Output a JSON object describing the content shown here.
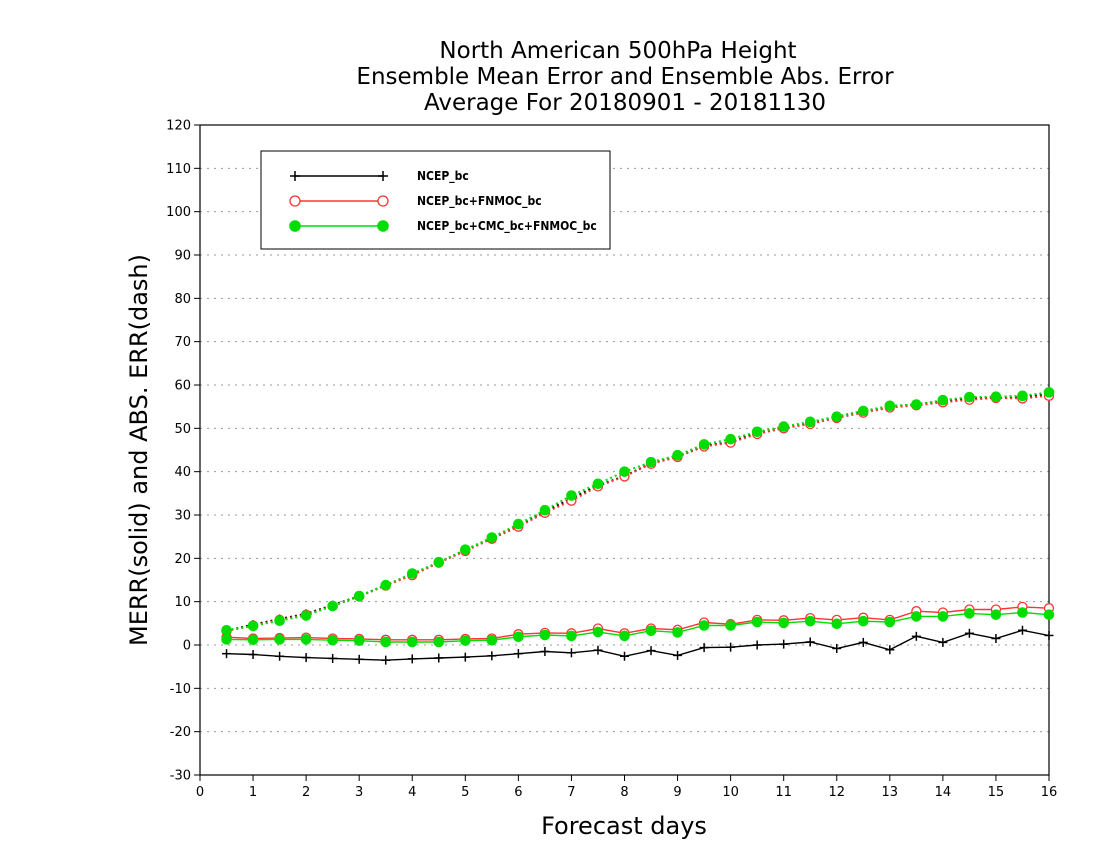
{
  "chart_data": {
    "type": "line",
    "title_lines": [
      "North American 500hPa Height",
      "Ensemble Mean Error and Ensemble Abs. Error",
      "Average For 20180901 - 20181130"
    ],
    "xlabel": "Forecast days",
    "ylabel": "MERR(solid) and ABS. ERR(dash)",
    "xlim": [
      0,
      16
    ],
    "ylim": [
      -30,
      120
    ],
    "xticks": [
      0,
      1,
      2,
      3,
      4,
      5,
      6,
      7,
      8,
      9,
      10,
      11,
      12,
      13,
      14,
      15,
      16
    ],
    "yticks": [
      -30,
      -20,
      -10,
      0,
      10,
      20,
      30,
      40,
      50,
      60,
      70,
      80,
      90,
      100,
      110,
      120
    ],
    "grid": true,
    "legend_position": "top-left",
    "x": [
      0.5,
      1,
      1.5,
      2,
      2.5,
      3,
      3.5,
      4,
      4.5,
      5,
      5.5,
      6,
      6.5,
      7,
      7.5,
      8,
      8.5,
      9,
      9.5,
      10,
      10.5,
      11,
      11.5,
      12,
      12.5,
      13,
      13.5,
      14,
      14.5,
      15,
      15.5,
      16
    ],
    "series": [
      {
        "name": "NCEP_bc",
        "color": "#000000",
        "marker": "plus",
        "mean_error": [
          -2.0,
          -2.2,
          -2.6,
          -2.9,
          -3.1,
          -3.3,
          -3.5,
          -3.2,
          -3.0,
          -2.8,
          -2.5,
          -2.0,
          -1.5,
          -1.8,
          -1.2,
          -2.6,
          -1.3,
          -2.4,
          -0.6,
          -0.5,
          0.0,
          0.2,
          0.7,
          -0.8,
          0.6,
          -1.1,
          2.0,
          0.6,
          2.7,
          1.5,
          3.4,
          2.2
        ],
        "abs_error": [
          3.3,
          4.7,
          6.0,
          7.2,
          9.2,
          11.3,
          13.8,
          16.3,
          19.0,
          21.9,
          24.7,
          27.6,
          30.8,
          33.8,
          36.8,
          39.0,
          41.9,
          43.5,
          46.0,
          46.8,
          49.0,
          50.0,
          51.2,
          52.7,
          54.0,
          54.8,
          55.6,
          56.2,
          57.0,
          57.0,
          57.2,
          58.0
        ]
      },
      {
        "name": "NCEP_bc+FNMOC_bc",
        "color": "#ff3333",
        "marker": "open-circle",
        "mean_error": [
          1.8,
          1.5,
          1.6,
          1.7,
          1.5,
          1.4,
          1.2,
          1.2,
          1.2,
          1.4,
          1.5,
          2.5,
          2.8,
          2.7,
          3.8,
          2.7,
          3.8,
          3.5,
          5.2,
          4.8,
          5.8,
          5.7,
          6.2,
          5.8,
          6.3,
          5.8,
          7.8,
          7.5,
          8.2,
          8.2,
          8.8,
          8.5
        ],
        "abs_error": [
          3.2,
          4.5,
          5.8,
          7.0,
          9.0,
          11.2,
          13.7,
          16.1,
          19.0,
          21.7,
          24.5,
          27.3,
          30.5,
          33.3,
          36.6,
          38.9,
          41.8,
          43.4,
          45.8,
          46.7,
          48.7,
          50.0,
          51.0,
          52.4,
          53.6,
          54.8,
          55.3,
          56.0,
          56.6,
          57.0,
          56.9,
          57.5
        ]
      },
      {
        "name": "NCEP_bc+CMC_bc+FNMOC_bc",
        "color": "#00dd00",
        "marker": "filled-circle",
        "mean_error": [
          1.3,
          1.2,
          1.3,
          1.3,
          1.1,
          1.0,
          0.7,
          0.7,
          0.7,
          1.0,
          1.1,
          1.9,
          2.3,
          2.1,
          3.0,
          2.1,
          3.3,
          2.9,
          4.5,
          4.5,
          5.3,
          5.1,
          5.5,
          4.9,
          5.5,
          5.3,
          6.6,
          6.6,
          7.3,
          7.0,
          7.5,
          7.0
        ],
        "abs_error": [
          3.4,
          4.4,
          5.6,
          6.8,
          9.0,
          11.3,
          13.8,
          16.5,
          19.1,
          22.0,
          24.8,
          27.9,
          31.1,
          34.5,
          37.2,
          40.0,
          42.2,
          43.8,
          46.3,
          47.5,
          49.2,
          50.4,
          51.5,
          52.7,
          54.0,
          55.2,
          55.5,
          56.5,
          57.2,
          57.3,
          57.5,
          58.3
        ]
      }
    ]
  }
}
